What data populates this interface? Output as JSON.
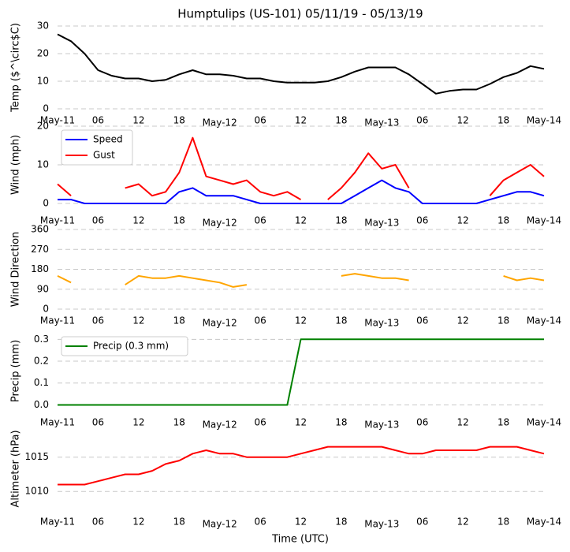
{
  "chart_data": [
    {
      "type": "line",
      "title": "Humptulips (US-101) 05/11/19 - 05/13/19",
      "ylabel": "Temp ($^\\circ$C)",
      "x": [
        0,
        2,
        4,
        6,
        8,
        10,
        12,
        14,
        16,
        18,
        20,
        22,
        24,
        26,
        28,
        30,
        32,
        34,
        36,
        38,
        40,
        42,
        44,
        46,
        48,
        50,
        52,
        54,
        56,
        58,
        60,
        62,
        64,
        66,
        68,
        70,
        72
      ],
      "values": [
        27,
        24.5,
        20,
        14,
        12,
        11,
        11,
        10,
        10.5,
        12.5,
        14,
        12.5,
        12.5,
        12,
        11,
        11,
        10,
        9.5,
        9.5,
        9.5,
        10,
        11.5,
        13.5,
        15,
        15,
        15,
        12.5,
        9,
        5.5,
        6.5,
        7,
        7,
        9,
        11.5,
        13,
        15.5,
        14.5
      ],
      "color": "#000000",
      "xlim": [
        0,
        72
      ],
      "xticks": [
        {
          "value": 0,
          "label": "May-11"
        },
        {
          "value": 6,
          "label": "06"
        },
        {
          "value": 12,
          "label": "12"
        },
        {
          "value": 18,
          "label": "18"
        },
        {
          "value": 24,
          "label": "May-12"
        },
        {
          "value": 30,
          "label": "06"
        },
        {
          "value": 36,
          "label": "12"
        },
        {
          "value": 42,
          "label": "18"
        },
        {
          "value": 48,
          "label": "May-13"
        },
        {
          "value": 54,
          "label": "06"
        },
        {
          "value": 60,
          "label": "12"
        },
        {
          "value": 66,
          "label": "18"
        },
        {
          "value": 72,
          "label": "May-14"
        }
      ],
      "ylim": [
        0,
        30
      ],
      "yticks": [
        0,
        10,
        20,
        30
      ],
      "grid": true
    },
    {
      "type": "line",
      "ylabel": "Wind (mph)",
      "legend": "upper left",
      "x": [
        0,
        2,
        4,
        6,
        8,
        10,
        12,
        14,
        16,
        18,
        20,
        22,
        24,
        26,
        28,
        30,
        32,
        34,
        36,
        38,
        40,
        42,
        44,
        46,
        48,
        50,
        52,
        54,
        56,
        58,
        60,
        62,
        64,
        66,
        68,
        70,
        72
      ],
      "series": [
        {
          "name": "Speed",
          "color": "#0000ff",
          "values": [
            1,
            1,
            0,
            0,
            0,
            0,
            0,
            0,
            0,
            3,
            4,
            2,
            2,
            2,
            1,
            0,
            0,
            0,
            0,
            0,
            0,
            0,
            2,
            4,
            6,
            4,
            3,
            0,
            0,
            0,
            0,
            0,
            1,
            2,
            3,
            3,
            2
          ]
        },
        {
          "name": "Gust",
          "color": "#ff0000",
          "values": [
            5,
            2,
            null,
            null,
            null,
            4,
            5,
            2,
            3,
            8,
            17,
            7,
            6,
            5,
            6,
            3,
            2,
            3,
            1,
            null,
            1,
            4,
            8,
            13,
            9,
            10,
            4,
            null,
            null,
            null,
            null,
            null,
            2,
            6,
            8,
            10,
            7
          ]
        }
      ],
      "xlim": [
        0,
        72
      ],
      "xticks": [
        {
          "value": 0,
          "label": "May-11"
        },
        {
          "value": 6,
          "label": "06"
        },
        {
          "value": 12,
          "label": "12"
        },
        {
          "value": 18,
          "label": "18"
        },
        {
          "value": 24,
          "label": "May-12"
        },
        {
          "value": 30,
          "label": "06"
        },
        {
          "value": 36,
          "label": "12"
        },
        {
          "value": 42,
          "label": "18"
        },
        {
          "value": 48,
          "label": "May-13"
        },
        {
          "value": 54,
          "label": "06"
        },
        {
          "value": 60,
          "label": "12"
        },
        {
          "value": 66,
          "label": "18"
        },
        {
          "value": 72,
          "label": "May-14"
        }
      ],
      "ylim": [
        0,
        20
      ],
      "yticks": [
        0,
        10,
        20
      ],
      "grid": true
    },
    {
      "type": "line",
      "ylabel": "Wind Direction",
      "x": [
        0,
        2,
        4,
        6,
        8,
        10,
        12,
        14,
        16,
        18,
        20,
        22,
        24,
        26,
        28,
        30,
        32,
        34,
        36,
        38,
        40,
        42,
        44,
        46,
        48,
        50,
        52,
        54,
        56,
        58,
        60,
        62,
        64,
        66,
        68,
        70,
        72
      ],
      "values": [
        150,
        120,
        null,
        null,
        null,
        110,
        150,
        140,
        140,
        150,
        140,
        130,
        120,
        100,
        110,
        null,
        null,
        null,
        null,
        null,
        null,
        150,
        160,
        150,
        140,
        140,
        130,
        null,
        null,
        null,
        null,
        null,
        null,
        150,
        130,
        140,
        130
      ],
      "color": "#ffa500",
      "xlim": [
        0,
        72
      ],
      "xticks": [
        {
          "value": 0,
          "label": "May-11"
        },
        {
          "value": 6,
          "label": "06"
        },
        {
          "value": 12,
          "label": "12"
        },
        {
          "value": 18,
          "label": "18"
        },
        {
          "value": 24,
          "label": "May-12"
        },
        {
          "value": 30,
          "label": "06"
        },
        {
          "value": 36,
          "label": "12"
        },
        {
          "value": 42,
          "label": "18"
        },
        {
          "value": 48,
          "label": "May-13"
        },
        {
          "value": 54,
          "label": "06"
        },
        {
          "value": 60,
          "label": "12"
        },
        {
          "value": 66,
          "label": "18"
        },
        {
          "value": 72,
          "label": "May-14"
        }
      ],
      "ylim": [
        0,
        360
      ],
      "yticks": [
        0,
        90,
        180,
        270,
        360
      ],
      "grid": true
    },
    {
      "type": "line",
      "ylabel": "Precip (mm)",
      "legend": "upper left",
      "x": [
        0,
        2,
        4,
        6,
        8,
        10,
        12,
        14,
        16,
        18,
        20,
        22,
        24,
        26,
        28,
        30,
        32,
        34,
        36,
        38,
        40,
        42,
        44,
        46,
        48,
        50,
        52,
        54,
        56,
        58,
        60,
        62,
        64,
        66,
        68,
        70,
        72
      ],
      "series": [
        {
          "name": "Precip (0.3 mm)",
          "color": "#008000",
          "values": [
            0,
            0,
            0,
            0,
            0,
            0,
            0,
            0,
            0,
            0,
            0,
            0,
            0,
            0,
            0,
            0,
            0,
            0,
            0.3,
            0.3,
            0.3,
            0.3,
            0.3,
            0.3,
            0.3,
            0.3,
            0.3,
            0.3,
            0.3,
            0.3,
            0.3,
            0.3,
            0.3,
            0.3,
            0.3,
            0.3,
            0.3
          ]
        }
      ],
      "xlim": [
        0,
        72
      ],
      "xticks": [
        {
          "value": 0,
          "label": "May-11"
        },
        {
          "value": 6,
          "label": "06"
        },
        {
          "value": 12,
          "label": "12"
        },
        {
          "value": 18,
          "label": "18"
        },
        {
          "value": 24,
          "label": "May-12"
        },
        {
          "value": 30,
          "label": "06"
        },
        {
          "value": 36,
          "label": "12"
        },
        {
          "value": 42,
          "label": "18"
        },
        {
          "value": 48,
          "label": "May-13"
        },
        {
          "value": 54,
          "label": "06"
        },
        {
          "value": 60,
          "label": "12"
        },
        {
          "value": 66,
          "label": "18"
        },
        {
          "value": 72,
          "label": "May-14"
        }
      ],
      "ylim": [
        -0.02,
        0.33
      ],
      "yticks": [
        {
          "value": 0,
          "label": "0.0"
        },
        0.1,
        0.2,
        0.3
      ],
      "grid": true
    },
    {
      "type": "line",
      "ylabel": "Altimeter (hPa)",
      "xlabel": "Time (UTC)",
      "x": [
        0,
        2,
        4,
        6,
        8,
        10,
        12,
        14,
        16,
        18,
        20,
        22,
        24,
        26,
        28,
        30,
        32,
        34,
        36,
        38,
        40,
        42,
        44,
        46,
        48,
        50,
        52,
        54,
        56,
        58,
        60,
        62,
        64,
        66,
        68,
        70,
        72
      ],
      "values": [
        1011,
        1011,
        1011,
        1011.5,
        1012,
        1012.5,
        1012.5,
        1013,
        1014,
        1014.5,
        1015.5,
        1016,
        1015.5,
        1015.5,
        1015,
        1015,
        1015,
        1015,
        1015.5,
        1016,
        1016.5,
        1016.5,
        1016.5,
        1016.5,
        1016.5,
        1016,
        1015.5,
        1015.5,
        1016,
        1016,
        1016,
        1016,
        1016.5,
        1016.5,
        1016.5,
        1016,
        1015.5
      ],
      "color": "#ff0000",
      "xlim": [
        0,
        72
      ],
      "xticks": [
        {
          "value": 0,
          "label": "May-11"
        },
        {
          "value": 6,
          "label": "06"
        },
        {
          "value": 12,
          "label": "12"
        },
        {
          "value": 18,
          "label": "18"
        },
        {
          "value": 24,
          "label": "May-12"
        },
        {
          "value": 30,
          "label": "06"
        },
        {
          "value": 36,
          "label": "12"
        },
        {
          "value": 42,
          "label": "18"
        },
        {
          "value": 48,
          "label": "May-13"
        },
        {
          "value": 54,
          "label": "06"
        },
        {
          "value": 60,
          "label": "12"
        },
        {
          "value": 66,
          "label": "18"
        },
        {
          "value": 72,
          "label": "May-14"
        }
      ],
      "ylim": [
        1007.5,
        1019.1
      ],
      "yticks": [
        1010,
        1015
      ],
      "grid": true
    }
  ]
}
